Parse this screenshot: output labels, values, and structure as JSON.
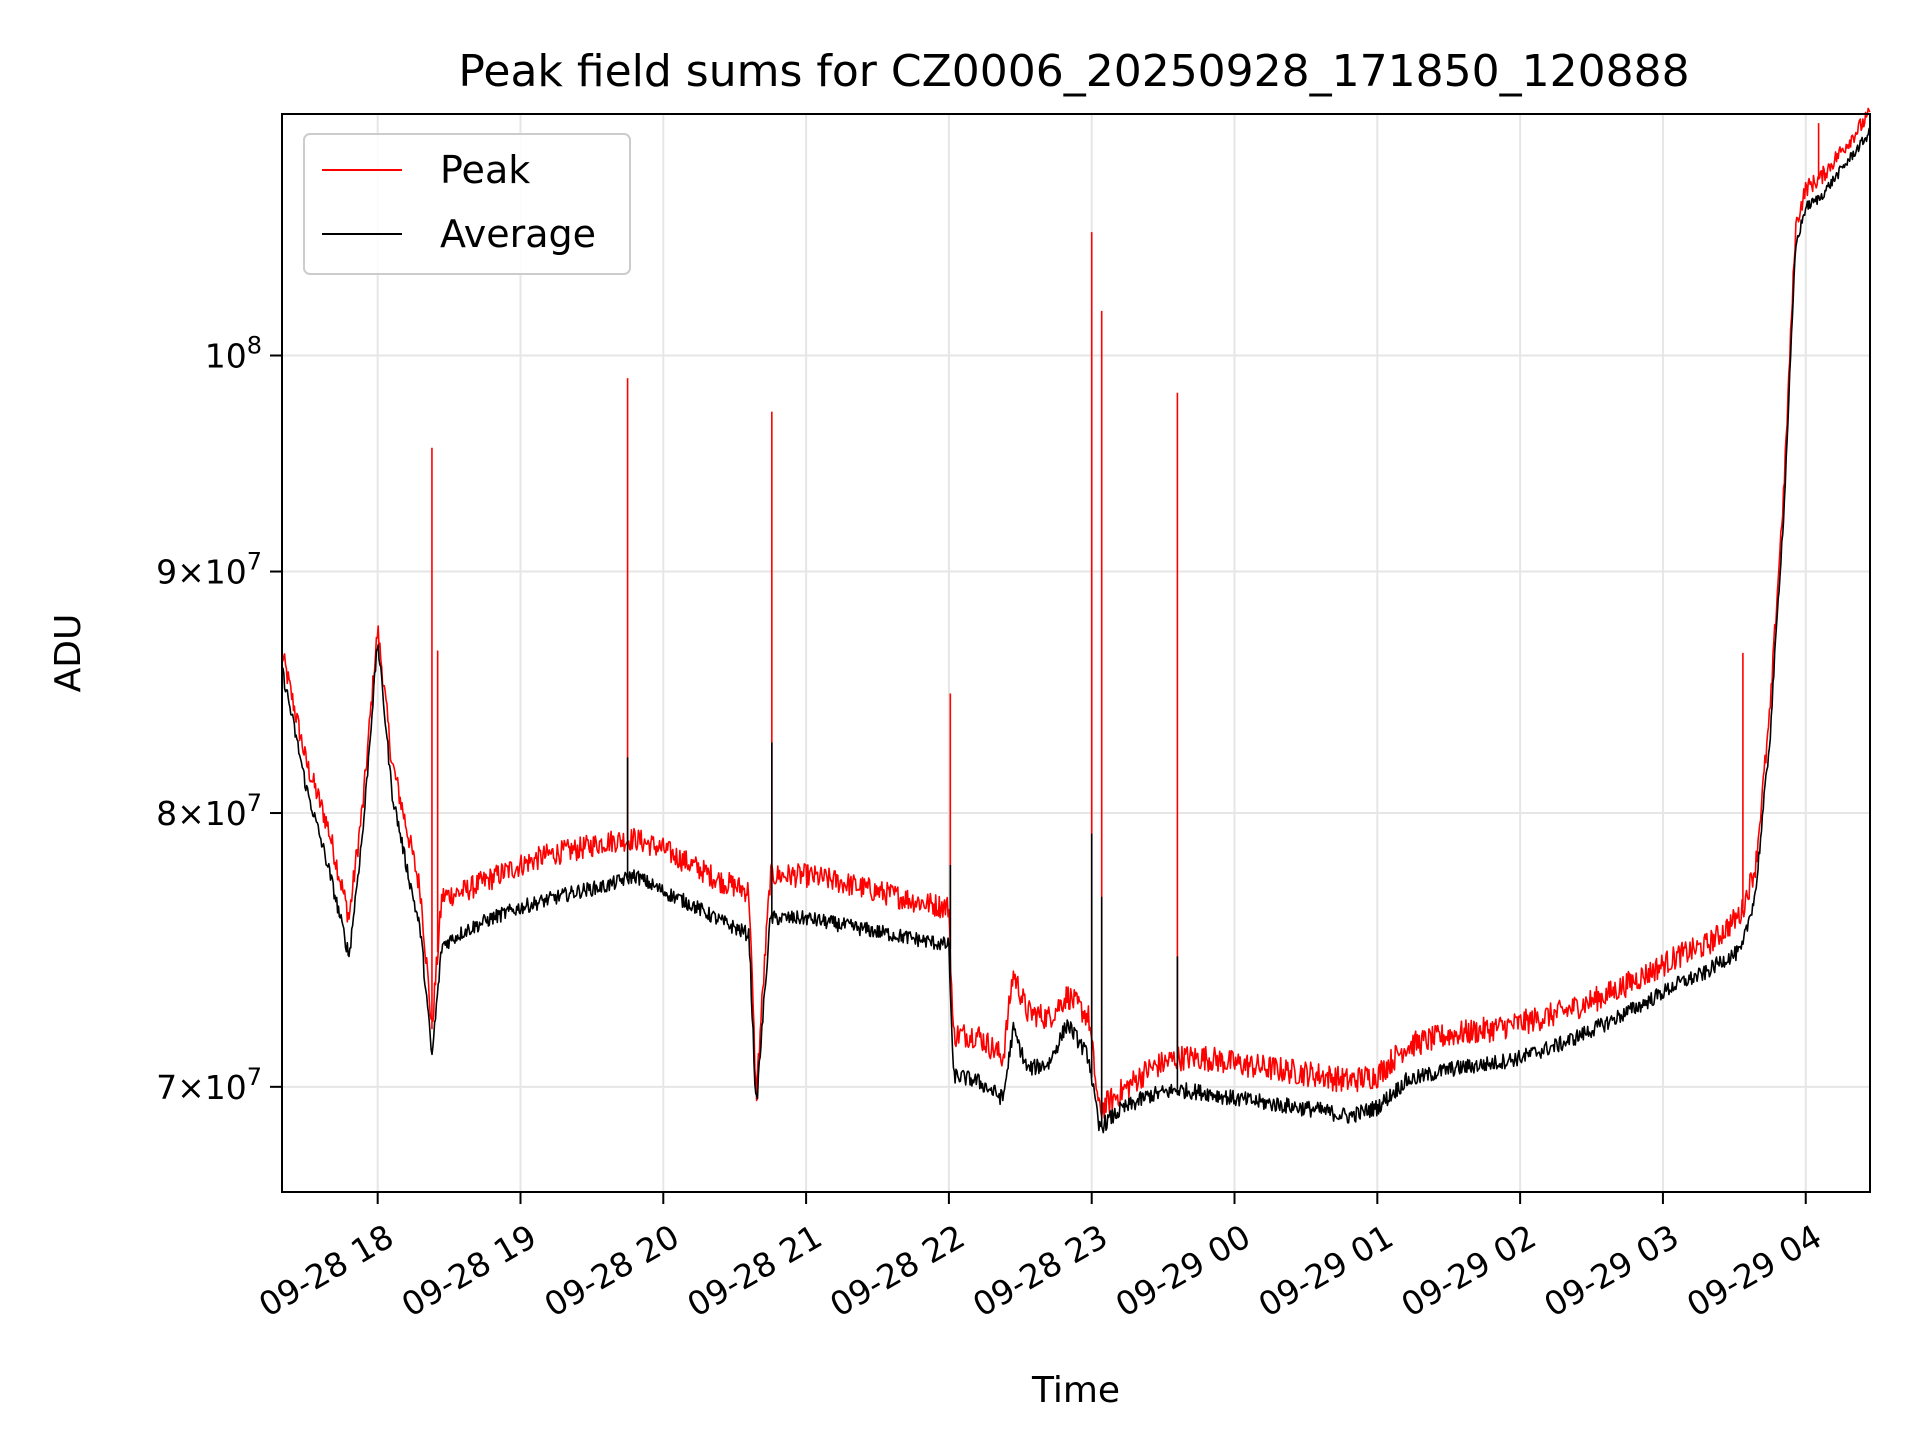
{
  "chart_data": {
    "type": "line",
    "title": "Peak field sums for CZ0006_20250928_171850_120888",
    "xlabel": "Time",
    "ylabel": "ADU",
    "yscale": "log",
    "ylim": [
      66500000,
      112500000
    ],
    "xlim_hours": [
      17.33,
      28.45
    ],
    "grid": true,
    "legend_position": "top-left",
    "x_ticks": [
      {
        "hour": 18,
        "label": "09-28 18"
      },
      {
        "hour": 19,
        "label": "09-28 19"
      },
      {
        "hour": 20,
        "label": "09-28 20"
      },
      {
        "hour": 21,
        "label": "09-28 21"
      },
      {
        "hour": 22,
        "label": "09-28 22"
      },
      {
        "hour": 23,
        "label": "09-28 23"
      },
      {
        "hour": 24,
        "label": "09-29 00"
      },
      {
        "hour": 25,
        "label": "09-29 01"
      },
      {
        "hour": 26,
        "label": "09-29 02"
      },
      {
        "hour": 27,
        "label": "09-29 03"
      },
      {
        "hour": 28,
        "label": "09-29 04"
      }
    ],
    "y_ticks": [
      {
        "value": 70000000,
        "mantissa": "7",
        "exp": "7"
      },
      {
        "value": 80000000,
        "mantissa": "8",
        "exp": "7"
      },
      {
        "value": 90000000,
        "mantissa": "9",
        "exp": "7"
      },
      {
        "value": 100000000,
        "mantissa": "",
        "exp": "8"
      }
    ],
    "series": [
      {
        "name": "Peak",
        "color": "#ff0000",
        "points": [
          [
            17.33,
            86.5
          ],
          [
            17.5,
            82.0
          ],
          [
            17.65,
            79.5
          ],
          [
            17.8,
            76.0
          ],
          [
            17.9,
            80.5
          ],
          [
            18.0,
            87.5
          ],
          [
            18.1,
            82.0
          ],
          [
            18.2,
            79.5
          ],
          [
            18.3,
            77.0
          ],
          [
            18.38,
            72.0
          ],
          [
            18.45,
            76.8
          ],
          [
            18.6,
            77.0
          ],
          [
            18.8,
            77.5
          ],
          [
            19.0,
            78.0
          ],
          [
            19.2,
            78.4
          ],
          [
            19.4,
            78.6
          ],
          [
            19.6,
            78.9
          ],
          [
            19.8,
            79.0
          ],
          [
            20.0,
            78.6
          ],
          [
            20.2,
            78.0
          ],
          [
            20.4,
            77.4
          ],
          [
            20.6,
            77.0
          ],
          [
            20.65,
            69.6
          ],
          [
            20.75,
            77.6
          ],
          [
            21.0,
            77.6
          ],
          [
            21.2,
            77.4
          ],
          [
            21.5,
            77.0
          ],
          [
            21.8,
            76.6
          ],
          [
            22.0,
            76.4
          ],
          [
            22.03,
            71.8
          ],
          [
            22.2,
            71.8
          ],
          [
            22.38,
            71.0
          ],
          [
            22.45,
            74.0
          ],
          [
            22.55,
            72.6
          ],
          [
            22.7,
            72.4
          ],
          [
            22.83,
            73.2
          ],
          [
            22.98,
            72.4
          ],
          [
            23.05,
            69.2
          ],
          [
            23.2,
            69.8
          ],
          [
            23.4,
            70.6
          ],
          [
            23.6,
            71.0
          ],
          [
            23.8,
            71.0
          ],
          [
            24.0,
            70.8
          ],
          [
            24.3,
            70.6
          ],
          [
            24.6,
            70.4
          ],
          [
            24.8,
            70.2
          ],
          [
            25.0,
            70.4
          ],
          [
            25.2,
            71.4
          ],
          [
            25.5,
            71.8
          ],
          [
            25.8,
            72.0
          ],
          [
            26.0,
            72.2
          ],
          [
            26.3,
            72.6
          ],
          [
            26.6,
            73.2
          ],
          [
            26.9,
            74.0
          ],
          [
            27.1,
            74.6
          ],
          [
            27.3,
            75.0
          ],
          [
            27.4,
            75.4
          ],
          [
            27.55,
            76.2
          ],
          [
            27.65,
            78.0
          ],
          [
            27.75,
            84.0
          ],
          [
            27.85,
            94.0
          ],
          [
            27.93,
            106.5
          ],
          [
            28.0,
            108.5
          ],
          [
            28.1,
            109.0
          ],
          [
            28.2,
            110.0
          ],
          [
            28.3,
            111.0
          ],
          [
            28.45,
            112.5
          ]
        ],
        "spikes": [
          [
            18.38,
            95.6
          ],
          [
            18.42,
            86.6
          ],
          [
            19.75,
            98.9
          ],
          [
            20.76,
            97.3
          ],
          [
            22.01,
            84.8
          ],
          [
            23.0,
            106.2
          ],
          [
            23.07,
            102.2
          ],
          [
            23.6,
            98.2
          ],
          [
            27.56,
            86.5
          ],
          [
            28.09,
            112.0
          ]
        ]
      },
      {
        "name": "Average",
        "color": "#000000",
        "points": [
          [
            17.33,
            85.8
          ],
          [
            17.5,
            81.0
          ],
          [
            17.65,
            78.0
          ],
          [
            17.8,
            74.6
          ],
          [
            17.9,
            79.5
          ],
          [
            18.0,
            87.0
          ],
          [
            18.1,
            80.8
          ],
          [
            18.2,
            78.0
          ],
          [
            18.3,
            75.5
          ],
          [
            18.38,
            71.0
          ],
          [
            18.45,
            75.0
          ],
          [
            18.6,
            75.5
          ],
          [
            18.8,
            76.0
          ],
          [
            19.0,
            76.4
          ],
          [
            19.2,
            76.7
          ],
          [
            19.4,
            77.0
          ],
          [
            19.6,
            77.2
          ],
          [
            19.8,
            77.6
          ],
          [
            20.0,
            77.0
          ],
          [
            20.2,
            76.5
          ],
          [
            20.4,
            75.9
          ],
          [
            20.6,
            75.4
          ],
          [
            20.65,
            69.2
          ],
          [
            20.75,
            76.0
          ],
          [
            21.0,
            76.0
          ],
          [
            21.2,
            75.8
          ],
          [
            21.5,
            75.5
          ],
          [
            21.8,
            75.2
          ],
          [
            22.0,
            75.0
          ],
          [
            22.03,
            70.4
          ],
          [
            22.2,
            70.2
          ],
          [
            22.38,
            69.6
          ],
          [
            22.45,
            72.0
          ],
          [
            22.55,
            70.6
          ],
          [
            22.7,
            70.8
          ],
          [
            22.83,
            72.2
          ],
          [
            22.98,
            71.0
          ],
          [
            23.05,
            68.6
          ],
          [
            23.2,
            69.2
          ],
          [
            23.4,
            69.7
          ],
          [
            23.6,
            69.9
          ],
          [
            23.8,
            69.8
          ],
          [
            24.0,
            69.6
          ],
          [
            24.3,
            69.4
          ],
          [
            24.6,
            69.2
          ],
          [
            24.8,
            69.0
          ],
          [
            25.0,
            69.3
          ],
          [
            25.2,
            70.2
          ],
          [
            25.5,
            70.6
          ],
          [
            25.8,
            70.8
          ],
          [
            26.0,
            71.0
          ],
          [
            26.3,
            71.5
          ],
          [
            26.6,
            72.2
          ],
          [
            26.9,
            73.0
          ],
          [
            27.1,
            73.6
          ],
          [
            27.3,
            74.0
          ],
          [
            27.4,
            74.4
          ],
          [
            27.55,
            74.8
          ],
          [
            27.65,
            77.0
          ],
          [
            27.75,
            83.0
          ],
          [
            27.85,
            93.0
          ],
          [
            27.93,
            105.5
          ],
          [
            28.0,
            107.5
          ],
          [
            28.1,
            108.0
          ],
          [
            28.2,
            109.0
          ],
          [
            28.3,
            110.0
          ],
          [
            28.45,
            111.5
          ]
        ],
        "spikes": [
          [
            19.75,
            82.2
          ],
          [
            20.76,
            82.8
          ],
          [
            22.01,
            78.0
          ],
          [
            23.0,
            79.2
          ],
          [
            23.07,
            76.8
          ],
          [
            23.6,
            74.6
          ]
        ]
      }
    ]
  }
}
